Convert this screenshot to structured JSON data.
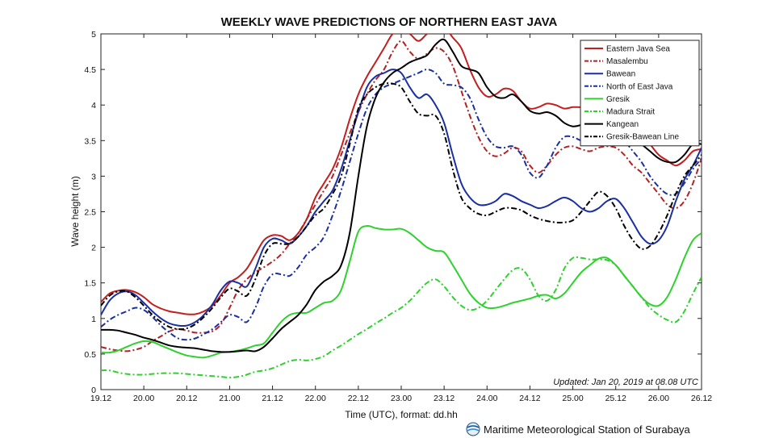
{
  "chart_data": {
    "type": "line",
    "title": "WEEKLY WAVE PREDICTIONS OF NORTHERN EAST JAVA",
    "xlabel": "Time (UTC), format: dd.hh",
    "ylabel": "Wave height (m)",
    "ylim": [
      0,
      5
    ],
    "xlim": [
      0,
      14
    ],
    "x_ticks": [
      "19.12",
      "20.00",
      "20.12",
      "21.00",
      "21.12",
      "22.00",
      "22.12",
      "23.00",
      "23.12",
      "24.00",
      "24.12",
      "25.00",
      "25.12",
      "26.00",
      "26.12"
    ],
    "y_ticks": [
      "0",
      "0.5",
      "1",
      "1.5",
      "2",
      "2.5",
      "3",
      "3.5",
      "4",
      "4.5",
      "5"
    ],
    "grid": false,
    "legend_position": "top-right",
    "annotation": "Updated: Jan 20, 2019 at 08.08 UTC",
    "credit": "Maritime Meteorological Station of Surabaya",
    "series": [
      {
        "name": "Eastern Java Sea",
        "color": "#c41e1e",
        "dash": "solid",
        "x": [
          0,
          0.2,
          0.4,
          0.6,
          0.8,
          1,
          1.2,
          1.4,
          1.6,
          1.8,
          2,
          2.2,
          2.4,
          2.6,
          2.8,
          3,
          3.2,
          3.4,
          3.6,
          3.8,
          4,
          4.2,
          4.4,
          4.6,
          4.8,
          5,
          5.2,
          5.4,
          5.6,
          5.8,
          6,
          6.2,
          6.4,
          6.6,
          6.8,
          7,
          7.2,
          7.4,
          7.6,
          7.8,
          8,
          8.2,
          8.4,
          8.6,
          8.8,
          9,
          9.2,
          9.4,
          9.6,
          9.8,
          10,
          10.2,
          10.4,
          10.6,
          10.8,
          11,
          11.2,
          11.4,
          11.6,
          11.8,
          12,
          12.2,
          12.4,
          12.6,
          12.8,
          13,
          13.2,
          13.4,
          13.6,
          13.8,
          14
        ],
        "y": [
          1.23,
          1.35,
          1.39,
          1.4,
          1.37,
          1.3,
          1.2,
          1.14,
          1.1,
          1.08,
          1.06,
          1.06,
          1.1,
          1.18,
          1.33,
          1.5,
          1.58,
          1.7,
          1.9,
          2.1,
          2.17,
          2.16,
          2.1,
          2.2,
          2.4,
          2.7,
          2.9,
          3.1,
          3.4,
          3.8,
          4.15,
          4.4,
          4.6,
          4.8,
          5,
          5.05,
          5.0,
          4.9,
          5.0,
          5.1,
          5.1,
          4.95,
          4.8,
          4.5,
          4.25,
          4.12,
          4.15,
          4.23,
          4.2,
          4.05,
          3.95,
          3.97,
          4.02,
          4.0,
          3.95,
          3.97,
          3.97,
          3.98,
          3.97,
          3.95,
          3.9,
          3.85,
          3.72,
          3.6,
          3.45,
          3.3,
          3.22,
          3.15,
          3.22,
          3.35,
          3.38
        ]
      },
      {
        "name": "Masalembu",
        "color": "#b22222",
        "dash": "dashdot",
        "x": [
          0,
          0.2,
          0.4,
          0.6,
          0.8,
          1,
          1.2,
          1.4,
          1.6,
          1.8,
          2,
          2.2,
          2.4,
          2.6,
          2.8,
          3,
          3.2,
          3.4,
          3.6,
          3.8,
          4,
          4.2,
          4.4,
          4.6,
          4.8,
          5,
          5.2,
          5.4,
          5.6,
          5.8,
          6,
          6.2,
          6.4,
          6.6,
          6.8,
          7,
          7.2,
          7.4,
          7.6,
          7.8,
          8,
          8.2,
          8.4,
          8.6,
          8.8,
          9,
          9.2,
          9.4,
          9.6,
          9.8,
          10,
          10.2,
          10.4,
          10.6,
          10.8,
          11,
          11.2,
          11.4,
          11.6,
          11.8,
          12,
          12.2,
          12.4,
          12.6,
          12.8,
          13,
          13.2,
          13.4,
          13.6,
          13.8,
          14
        ],
        "y": [
          0.6,
          0.57,
          0.55,
          0.54,
          0.56,
          0.6,
          0.68,
          0.75,
          0.82,
          0.85,
          0.83,
          0.8,
          0.8,
          0.82,
          0.92,
          1.15,
          1.4,
          1.55,
          1.65,
          1.72,
          1.8,
          1.9,
          2.05,
          2.2,
          2.4,
          2.6,
          2.8,
          3.0,
          3.3,
          3.6,
          3.9,
          4.15,
          4.35,
          4.5,
          4.75,
          4.9,
          4.75,
          4.65,
          4.72,
          4.8,
          4.75,
          4.55,
          4.2,
          3.85,
          3.55,
          3.35,
          3.28,
          3.32,
          3.4,
          3.35,
          3.15,
          3.05,
          3.15,
          3.3,
          3.4,
          3.42,
          3.38,
          3.35,
          3.4,
          3.42,
          3.4,
          3.3,
          3.15,
          3.05,
          2.9,
          2.75,
          2.6,
          2.55,
          2.65,
          2.9,
          3.25
        ]
      },
      {
        "name": "Bawean",
        "color": "#1a2fa0",
        "dash": "solid",
        "x": [
          0,
          0.2,
          0.4,
          0.6,
          0.8,
          1,
          1.2,
          1.4,
          1.6,
          1.8,
          2,
          2.2,
          2.4,
          2.6,
          2.8,
          3,
          3.2,
          3.4,
          3.6,
          3.8,
          4,
          4.2,
          4.4,
          4.6,
          4.8,
          5,
          5.2,
          5.4,
          5.6,
          5.8,
          6,
          6.2,
          6.4,
          6.6,
          6.8,
          7,
          7.2,
          7.4,
          7.6,
          7.8,
          8,
          8.2,
          8.4,
          8.6,
          8.8,
          9,
          9.2,
          9.4,
          9.6,
          9.8,
          10,
          10.2,
          10.4,
          10.6,
          10.8,
          11,
          11.2,
          11.4,
          11.6,
          11.8,
          12,
          12.2,
          12.4,
          12.6,
          12.8,
          13,
          13.2,
          13.4,
          13.6,
          13.8,
          14
        ],
        "y": [
          1.05,
          1.25,
          1.35,
          1.38,
          1.33,
          1.22,
          1.1,
          1.0,
          0.93,
          0.9,
          0.9,
          0.95,
          1.05,
          1.2,
          1.4,
          1.52,
          1.5,
          1.45,
          1.7,
          2.0,
          2.12,
          2.1,
          2.05,
          2.15,
          2.3,
          2.5,
          2.65,
          2.8,
          3.1,
          3.5,
          3.9,
          4.25,
          4.4,
          4.45,
          4.5,
          4.45,
          4.25,
          4.1,
          4.15,
          4.0,
          3.75,
          3.3,
          2.9,
          2.7,
          2.6,
          2.6,
          2.65,
          2.75,
          2.72,
          2.65,
          2.6,
          2.55,
          2.58,
          2.65,
          2.7,
          2.65,
          2.55,
          2.5,
          2.55,
          2.65,
          2.68,
          2.55,
          2.35,
          2.15,
          2.05,
          2.1,
          2.3,
          2.65,
          2.95,
          3.15,
          3.4
        ]
      },
      {
        "name": "North of East Java",
        "color": "#1a2fa0",
        "dash": "dashdot",
        "x": [
          0,
          0.2,
          0.4,
          0.6,
          0.8,
          1,
          1.2,
          1.4,
          1.6,
          1.8,
          2,
          2.2,
          2.4,
          2.6,
          2.8,
          3,
          3.2,
          3.4,
          3.6,
          3.8,
          4,
          4.2,
          4.4,
          4.6,
          4.8,
          5,
          5.2,
          5.4,
          5.6,
          5.8,
          6,
          6.2,
          6.4,
          6.6,
          6.8,
          7,
          7.2,
          7.4,
          7.6,
          7.8,
          8,
          8.2,
          8.4,
          8.6,
          8.8,
          9,
          9.2,
          9.4,
          9.6,
          9.8,
          10,
          10.2,
          10.4,
          10.6,
          10.8,
          11,
          11.2,
          11.4,
          11.6,
          11.8,
          12,
          12.2,
          12.4,
          12.6,
          12.8,
          13,
          13.2,
          13.4,
          13.6,
          13.8,
          14
        ],
        "y": [
          0.88,
          0.98,
          1.05,
          1.1,
          1.15,
          1.12,
          1.02,
          0.9,
          0.8,
          0.72,
          0.7,
          0.72,
          0.78,
          0.85,
          0.95,
          1.05,
          1.02,
          0.95,
          1.15,
          1.45,
          1.62,
          1.62,
          1.6,
          1.72,
          1.9,
          2.0,
          2.15,
          2.45,
          2.8,
          3.2,
          3.6,
          3.95,
          4.15,
          4.25,
          4.3,
          4.35,
          4.4,
          4.45,
          4.5,
          4.45,
          4.3,
          4.28,
          4.25,
          4.1,
          3.8,
          3.55,
          3.42,
          3.4,
          3.42,
          3.3,
          3.05,
          2.98,
          3.15,
          3.4,
          3.55,
          3.55,
          3.5,
          3.5,
          3.65,
          3.65,
          3.6,
          3.5,
          3.35,
          3.2,
          3.0,
          2.85,
          2.75,
          2.75,
          2.9,
          3.1,
          3.25
        ]
      },
      {
        "name": "Gresik",
        "color": "#2ed12e",
        "dash": "solid",
        "x": [
          0,
          0.2,
          0.4,
          0.6,
          0.8,
          1,
          1.2,
          1.4,
          1.6,
          1.8,
          2,
          2.2,
          2.4,
          2.6,
          2.8,
          3,
          3.2,
          3.4,
          3.6,
          3.8,
          4,
          4.2,
          4.4,
          4.6,
          4.8,
          5,
          5.2,
          5.4,
          5.6,
          5.8,
          6,
          6.2,
          6.4,
          6.6,
          6.8,
          7,
          7.2,
          7.4,
          7.6,
          7.8,
          8,
          8.2,
          8.4,
          8.6,
          8.8,
          9,
          9.2,
          9.4,
          9.6,
          9.8,
          10,
          10.2,
          10.4,
          10.6,
          10.8,
          11,
          11.2,
          11.4,
          11.6,
          11.8,
          12,
          12.2,
          12.4,
          12.6,
          12.8,
          13,
          13.2,
          13.4,
          13.6,
          13.8,
          14
        ],
        "y": [
          0.52,
          0.52,
          0.55,
          0.6,
          0.65,
          0.68,
          0.67,
          0.62,
          0.57,
          0.52,
          0.48,
          0.46,
          0.45,
          0.48,
          0.52,
          0.53,
          0.55,
          0.58,
          0.62,
          0.65,
          0.8,
          0.95,
          1.05,
          1.08,
          1.08,
          1.15,
          1.22,
          1.25,
          1.4,
          1.8,
          2.22,
          2.3,
          2.27,
          2.25,
          2.25,
          2.26,
          2.2,
          2.1,
          2.0,
          1.95,
          1.93,
          1.75,
          1.55,
          1.35,
          1.22,
          1.15,
          1.15,
          1.18,
          1.22,
          1.25,
          1.28,
          1.32,
          1.33,
          1.28,
          1.35,
          1.5,
          1.65,
          1.75,
          1.84,
          1.85,
          1.75,
          1.6,
          1.45,
          1.3,
          1.2,
          1.18,
          1.3,
          1.55,
          1.85,
          2.1,
          2.2
        ]
      },
      {
        "name": "Madura Strait",
        "color": "#2ed12e",
        "dash": "dashdot",
        "x": [
          0,
          0.2,
          0.4,
          0.6,
          0.8,
          1,
          1.2,
          1.4,
          1.6,
          1.8,
          2,
          2.2,
          2.4,
          2.6,
          2.8,
          3,
          3.2,
          3.4,
          3.6,
          3.8,
          4,
          4.2,
          4.4,
          4.6,
          4.8,
          5,
          5.2,
          5.4,
          5.6,
          5.8,
          6,
          6.2,
          6.4,
          6.6,
          6.8,
          7,
          7.2,
          7.4,
          7.6,
          7.8,
          8,
          8.2,
          8.4,
          8.6,
          8.8,
          9,
          9.2,
          9.4,
          9.6,
          9.8,
          10,
          10.2,
          10.4,
          10.6,
          10.8,
          11,
          11.2,
          11.4,
          11.6,
          11.8,
          12,
          12.2,
          12.4,
          12.6,
          12.8,
          13,
          13.2,
          13.4,
          13.6,
          13.8,
          14
        ],
        "y": [
          0.27,
          0.27,
          0.24,
          0.22,
          0.21,
          0.21,
          0.22,
          0.23,
          0.23,
          0.23,
          0.22,
          0.21,
          0.2,
          0.19,
          0.18,
          0.17,
          0.18,
          0.21,
          0.25,
          0.27,
          0.3,
          0.35,
          0.4,
          0.42,
          0.41,
          0.43,
          0.47,
          0.55,
          0.62,
          0.7,
          0.78,
          0.85,
          0.93,
          1.0,
          1.08,
          1.15,
          1.25,
          1.38,
          1.5,
          1.55,
          1.45,
          1.3,
          1.18,
          1.12,
          1.15,
          1.25,
          1.4,
          1.55,
          1.68,
          1.7,
          1.55,
          1.32,
          1.25,
          1.4,
          1.7,
          1.85,
          1.85,
          1.83,
          1.83,
          1.82,
          1.75,
          1.6,
          1.45,
          1.3,
          1.15,
          1.05,
          0.98,
          0.95,
          1.1,
          1.35,
          1.58
        ]
      },
      {
        "name": "Kangean",
        "color": "#000000",
        "dash": "solid",
        "x": [
          0,
          0.2,
          0.4,
          0.6,
          0.8,
          1,
          1.2,
          1.4,
          1.6,
          1.8,
          2,
          2.2,
          2.4,
          2.6,
          2.8,
          3,
          3.2,
          3.4,
          3.6,
          3.8,
          4,
          4.2,
          4.4,
          4.6,
          4.8,
          5,
          5.2,
          5.4,
          5.6,
          5.8,
          6,
          6.2,
          6.4,
          6.6,
          6.8,
          7,
          7.2,
          7.4,
          7.6,
          7.8,
          8,
          8.2,
          8.4,
          8.6,
          8.8,
          9,
          9.2,
          9.4,
          9.6,
          9.8,
          10,
          10.2,
          10.4,
          10.6,
          10.8,
          11,
          11.2,
          11.4,
          11.6,
          11.8,
          12,
          12.2,
          12.4,
          12.6,
          12.8,
          13,
          13.2,
          13.4,
          13.6,
          13.8,
          14
        ],
        "y": [
          0.84,
          0.84,
          0.83,
          0.8,
          0.77,
          0.73,
          0.7,
          0.66,
          0.62,
          0.6,
          0.59,
          0.58,
          0.56,
          0.54,
          0.53,
          0.53,
          0.54,
          0.55,
          0.54,
          0.6,
          0.72,
          0.85,
          0.95,
          1.05,
          1.2,
          1.4,
          1.52,
          1.6,
          1.75,
          2.2,
          3.0,
          3.7,
          4.1,
          4.32,
          4.45,
          4.52,
          4.6,
          4.65,
          4.7,
          4.85,
          4.92,
          4.75,
          4.55,
          4.5,
          4.45,
          4.25,
          4.12,
          4.1,
          4.15,
          4.05,
          3.92,
          3.88,
          3.9,
          3.85,
          3.75,
          3.7,
          3.72,
          3.75,
          3.75,
          3.8,
          3.75,
          3.65,
          3.55,
          3.45,
          3.35,
          3.25,
          3.2,
          3.2,
          3.3,
          3.45,
          3.45
        ]
      },
      {
        "name": "Gresik-Bawean Line",
        "color": "#000000",
        "dash": "dashdot",
        "x": [
          0,
          0.2,
          0.4,
          0.6,
          0.8,
          1,
          1.2,
          1.4,
          1.6,
          1.8,
          2,
          2.2,
          2.4,
          2.6,
          2.8,
          3,
          3.2,
          3.4,
          3.6,
          3.8,
          4,
          4.2,
          4.4,
          4.6,
          4.8,
          5,
          5.2,
          5.4,
          5.6,
          5.8,
          6,
          6.2,
          6.4,
          6.6,
          6.8,
          7,
          7.2,
          7.4,
          7.6,
          7.8,
          8,
          8.2,
          8.4,
          8.6,
          8.8,
          9,
          9.2,
          9.4,
          9.6,
          9.8,
          10,
          10.2,
          10.4,
          10.6,
          10.8,
          11,
          11.2,
          11.4,
          11.6,
          11.8,
          12,
          12.2,
          12.4,
          12.6,
          12.8,
          13,
          13.2,
          13.4,
          13.6,
          13.8,
          14
        ],
        "y": [
          1.18,
          1.32,
          1.38,
          1.38,
          1.3,
          1.18,
          1.05,
          0.95,
          0.88,
          0.85,
          0.86,
          0.92,
          1.02,
          1.15,
          1.3,
          1.42,
          1.38,
          1.32,
          1.55,
          1.88,
          2.05,
          2.05,
          2.05,
          2.15,
          2.3,
          2.45,
          2.55,
          2.75,
          3.0,
          3.45,
          3.95,
          4.15,
          4.25,
          4.3,
          4.3,
          4.25,
          4.05,
          3.88,
          3.85,
          3.85,
          3.6,
          3.1,
          2.7,
          2.55,
          2.47,
          2.45,
          2.5,
          2.55,
          2.55,
          2.52,
          2.45,
          2.4,
          2.37,
          2.35,
          2.35,
          2.38,
          2.5,
          2.65,
          2.78,
          2.72,
          2.55,
          2.3,
          2.1,
          1.98,
          2.02,
          2.2,
          2.45,
          2.75,
          3.0,
          3.15,
          3.3
        ]
      }
    ]
  }
}
